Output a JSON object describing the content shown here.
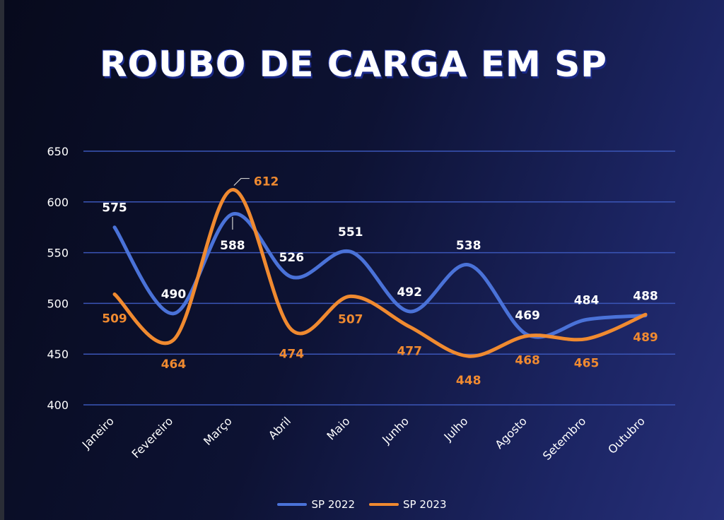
{
  "colors": {
    "background": "#0d1233",
    "grid": "#3b56b8",
    "series_2022": "#4a72d8",
    "series_2023": "#f08a30",
    "text": "#ffffff"
  },
  "chart_data": {
    "type": "line",
    "title": "ROUBO DE CARGA EM SP",
    "xlabel": "",
    "ylabel": "",
    "ylim": [
      400,
      650
    ],
    "yticks": [
      400,
      450,
      500,
      550,
      600,
      650
    ],
    "grid": true,
    "legend_position": "bottom",
    "smooth": true,
    "categories": [
      "Janeiro",
      "Fevereiro",
      "Março",
      "Abril",
      "Maio",
      "Junho",
      "Julho",
      "Agosto",
      "Setembro",
      "Outubro"
    ],
    "series": [
      {
        "name": "SP 2022",
        "values": [
          575,
          490,
          588,
          526,
          551,
          492,
          538,
          469,
          484,
          488
        ]
      },
      {
        "name": "SP 2023",
        "values": [
          509,
          464,
          612,
          474,
          507,
          477,
          448,
          468,
          465,
          489
        ]
      }
    ]
  }
}
